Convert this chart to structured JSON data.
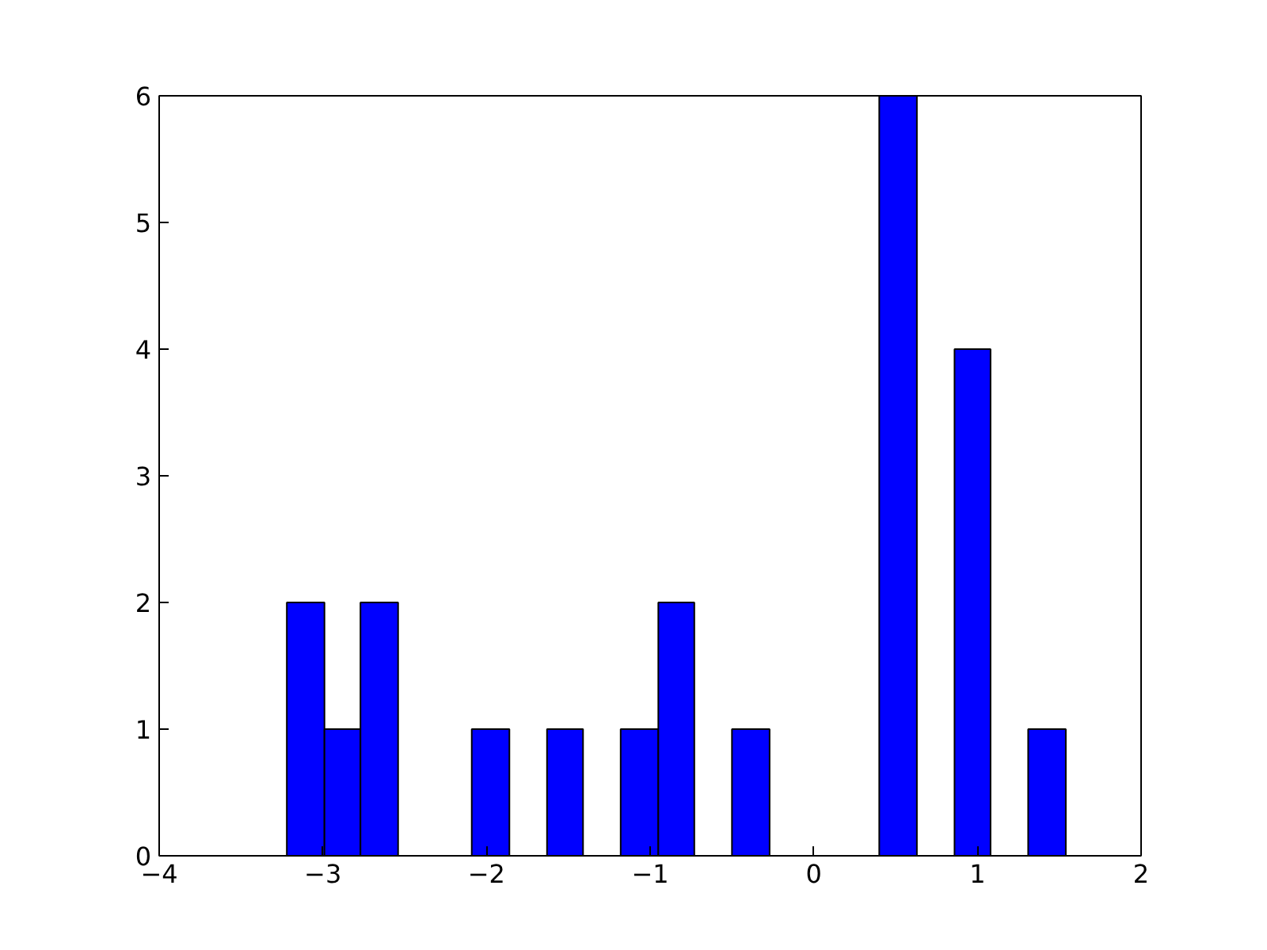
{
  "chart_data": {
    "type": "histogram",
    "color": "#0000ff",
    "bins": [
      -3.22,
      -2.99,
      -2.77,
      -2.54,
      -2.09,
      -1.86,
      -1.63,
      -1.41,
      -1.18,
      -0.95,
      -0.73,
      -0.5,
      -0.27,
      0.4,
      0.63,
      0.86,
      1.08,
      1.31,
      1.54
    ],
    "values": [
      2,
      1,
      2,
      0,
      1,
      0,
      1,
      0,
      1,
      2,
      0,
      1,
      0,
      6,
      0,
      4,
      0,
      1
    ],
    "xlim": [
      -4,
      2
    ],
    "ylim": [
      0,
      6
    ],
    "xticks": [
      {
        "value": -4,
        "label": "−4"
      },
      {
        "value": -3,
        "label": "−3"
      },
      {
        "value": -2,
        "label": "−2"
      },
      {
        "value": -1,
        "label": "−1"
      },
      0,
      1,
      2
    ],
    "yticks": [
      0,
      1,
      2,
      3,
      4,
      5,
      6
    ],
    "grid": false
  }
}
